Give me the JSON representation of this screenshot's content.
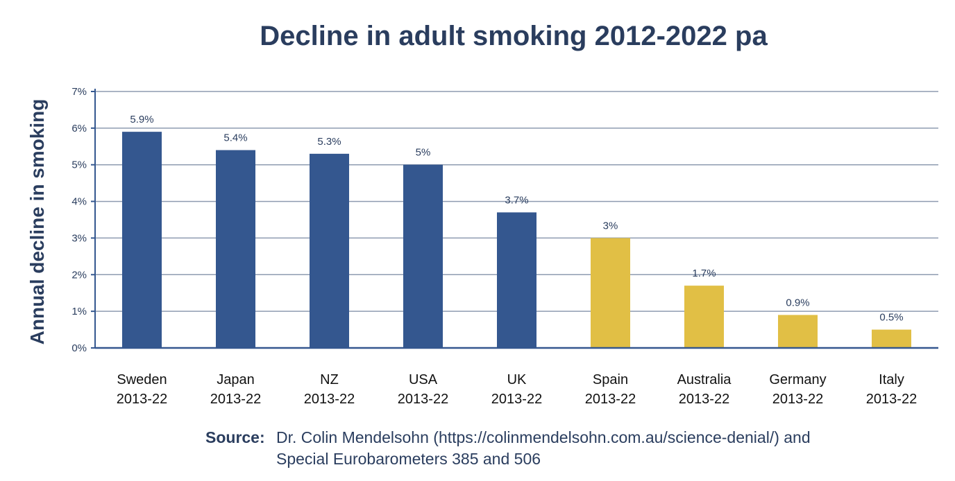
{
  "chart_data": {
    "type": "bar",
    "title": "Decline in adult smoking 2012-2022 pa",
    "ylabel": "Annual decline in smoking",
    "xlabel": "",
    "ylim": [
      0,
      7
    ],
    "y_ticks": [
      "0%",
      "1%",
      "2%",
      "3%",
      "4%",
      "5%",
      "6%",
      "7%"
    ],
    "grid": true,
    "categories": [
      {
        "name": "Sweden",
        "period": "2013-22"
      },
      {
        "name": "Japan",
        "period": "2013-22"
      },
      {
        "name": "NZ",
        "period": "2013-22"
      },
      {
        "name": "USA",
        "period": "2013-22"
      },
      {
        "name": "UK",
        "period": "2013-22"
      },
      {
        "name": "Spain",
        "period": "2013-22"
      },
      {
        "name": "Australia",
        "period": "2013-22"
      },
      {
        "name": "Germany",
        "period": "2013-22"
      },
      {
        "name": "Italy",
        "period": "2013-22"
      }
    ],
    "values": [
      5.9,
      5.4,
      5.3,
      5.0,
      3.7,
      3.0,
      1.7,
      0.9,
      0.5
    ],
    "data_labels": [
      "5.9%",
      "5.4%",
      "5.3%",
      "5%",
      "3.7%",
      "3%",
      "1.7%",
      "0.9%",
      "0.5%"
    ],
    "bar_colors": [
      "#34578f",
      "#34578f",
      "#34578f",
      "#34578f",
      "#34578f",
      "#e1bf45",
      "#e1bf45",
      "#e1bf45",
      "#e1bf45"
    ]
  },
  "source": {
    "label": "Source:",
    "text": "Dr. Colin Mendelsohn (https://colinmendelsohn.com.au/science-denial/) and Special Eurobarometers 385 and 506"
  },
  "colors": {
    "text": "#2a3d5e",
    "grid": "#8e9bb0",
    "axis": "#34578f"
  }
}
